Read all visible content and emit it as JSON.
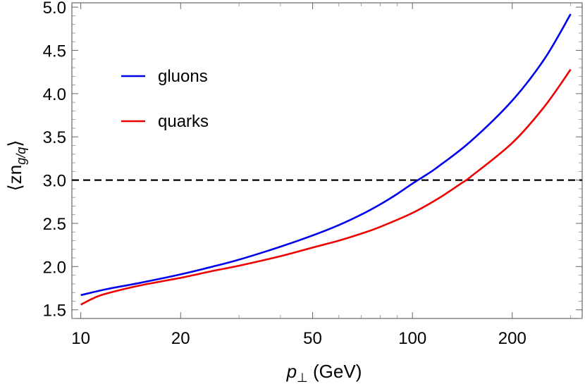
{
  "chart_data": {
    "type": "line",
    "xlabel_main": "p",
    "xlabel_sub": "⊥",
    "xlabel_unit": " (GeV)",
    "ylabel_pre": "⟨zn",
    "ylabel_sub": "g/q",
    "ylabel_post": "⟩",
    "xscale": "log",
    "xlim": [
      9.4,
      325
    ],
    "ylim": [
      1.4,
      5.05
    ],
    "x_ticks": [
      10,
      20,
      50,
      100,
      200
    ],
    "x_tick_labels": [
      "10",
      "20",
      "50",
      "100",
      "200"
    ],
    "y_ticks": [
      1.5,
      2.0,
      2.5,
      3.0,
      3.5,
      4.0,
      4.5,
      5.0
    ],
    "y_tick_labels": [
      "1.5",
      "2.0",
      "2.5",
      "3.0",
      "3.5",
      "4.0",
      "4.5",
      "5.0"
    ],
    "reference_line": {
      "y": 3.0,
      "style": "dashed",
      "color": "#000000"
    },
    "legend_position": "upper-left",
    "series": [
      {
        "name": "gluons",
        "color": "#0000ee",
        "x": [
          10,
          12,
          15,
          20,
          25,
          30,
          40,
          50,
          60,
          70,
          80,
          90,
          100,
          110,
          120,
          150,
          200,
          250,
          300
        ],
        "y": [
          1.67,
          1.74,
          1.81,
          1.91,
          2.0,
          2.08,
          2.23,
          2.36,
          2.48,
          2.6,
          2.72,
          2.84,
          2.96,
          3.06,
          3.16,
          3.45,
          3.92,
          4.4,
          4.92
        ]
      },
      {
        "name": "quarks",
        "color": "#ee0000",
        "x": [
          10,
          11,
          12,
          15,
          20,
          25,
          30,
          40,
          50,
          60,
          70,
          80,
          100,
          120,
          140,
          150,
          200,
          250,
          300
        ],
        "y": [
          1.56,
          1.64,
          1.69,
          1.78,
          1.87,
          1.95,
          2.01,
          2.12,
          2.22,
          2.3,
          2.38,
          2.46,
          2.62,
          2.79,
          2.96,
          3.04,
          3.43,
          3.85,
          4.28
        ]
      }
    ]
  }
}
